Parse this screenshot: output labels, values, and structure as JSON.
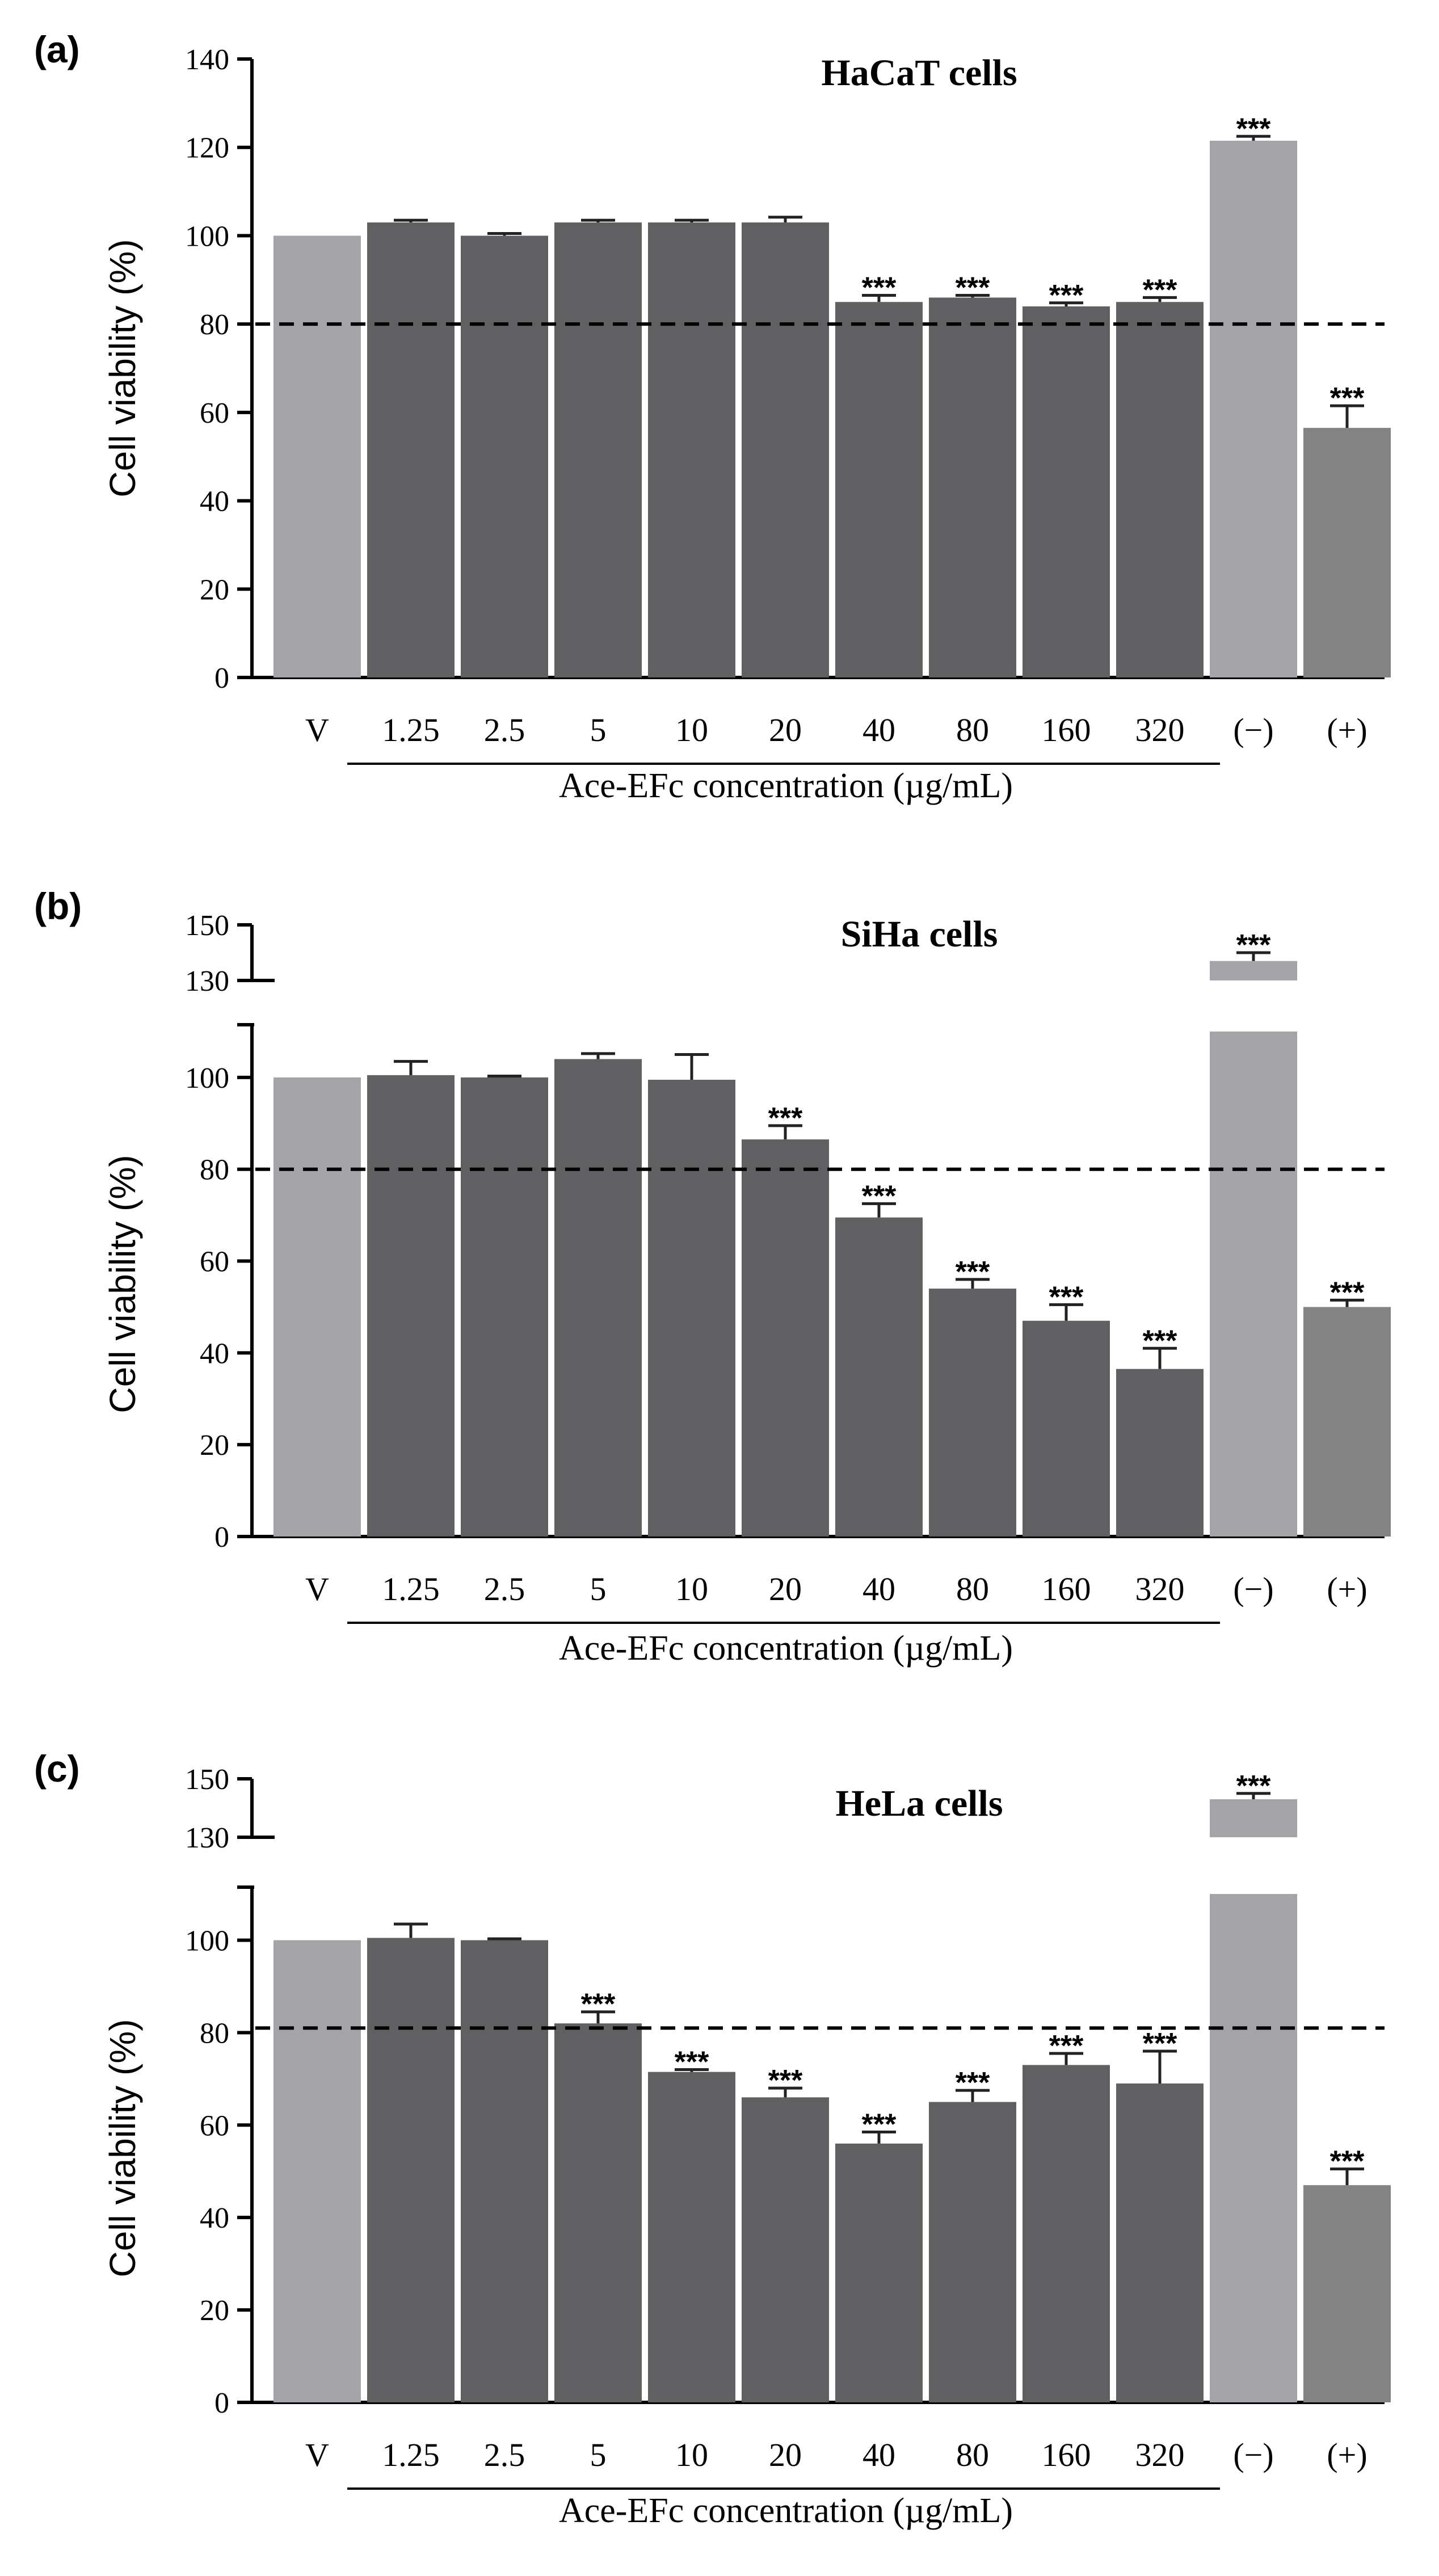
{
  "colors": {
    "vehicle": "#a4a3a7",
    "treatment": "#606062",
    "negative": "#a4a3a7",
    "positive": "#838384",
    "axis": "#000000"
  },
  "chart_data": [
    {
      "panel": "(a)",
      "type": "bar",
      "title": "HaCaT cells",
      "ylabel": "Cell viability (%)",
      "xlabel": "Ace-EFc concentration (µg/mL)",
      "categories": [
        "V",
        "1.25",
        "2.5",
        "5",
        "10",
        "20",
        "40",
        "80",
        "160",
        "320",
        "(−)",
        "(+)"
      ],
      "values": [
        100,
        103,
        100,
        103,
        103,
        103,
        85,
        86,
        84,
        85,
        121.5,
        56.5
      ],
      "errors": [
        0,
        0.5,
        0.5,
        0.5,
        0.5,
        1.2,
        1.5,
        0.5,
        0.8,
        1.0,
        1.0,
        5.0
      ],
      "significance": [
        "",
        "",
        "",
        "",
        "",
        "",
        "***",
        "***",
        "***",
        "***",
        "***",
        "***"
      ],
      "ylim": [
        0,
        140
      ],
      "yticks": [
        0,
        20,
        40,
        60,
        80,
        100,
        120,
        140
      ],
      "threshold": 80,
      "grid": false,
      "axis_break": false
    },
    {
      "panel": "(b)",
      "type": "bar",
      "title": "SiHa cells",
      "ylabel": "Cell viability (%)",
      "xlabel": "Ace-EFc concentration (µg/mL)",
      "categories": [
        "V",
        "1.25",
        "2.5",
        "5",
        "10",
        "20",
        "40",
        "80",
        "160",
        "320",
        "(−)",
        "(+)"
      ],
      "values": [
        100,
        100.5,
        100,
        104,
        99.5,
        86.5,
        69.5,
        54,
        47,
        36.5,
        137,
        50
      ],
      "errors": [
        0,
        3,
        0.3,
        1.2,
        5.5,
        3,
        3,
        2,
        3.5,
        4.5,
        3,
        1.5
      ],
      "significance": [
        "",
        "",
        "",
        "",
        "",
        "***",
        "***",
        "***",
        "***",
        "***",
        "***",
        "***"
      ],
      "ylim": [
        0,
        150
      ],
      "yticks": [
        0,
        20,
        40,
        60,
        80,
        100,
        130,
        150
      ],
      "threshold": 80,
      "grid": false,
      "axis_break": [
        110,
        130
      ]
    },
    {
      "panel": "(c)",
      "type": "bar",
      "title": "HeLa cells",
      "ylabel": "Cell viability (%)",
      "xlabel": "Ace-EFc concentration (µg/mL)",
      "categories": [
        "V",
        "1.25",
        "2.5",
        "5",
        "10",
        "20",
        "40",
        "80",
        "160",
        "320",
        "(−)",
        "(+)"
      ],
      "values": [
        100,
        100.5,
        100,
        82,
        71.5,
        66,
        56,
        65,
        73,
        69,
        143,
        47
      ],
      "errors": [
        0,
        3,
        0.3,
        2.5,
        0.5,
        2,
        2.5,
        2.5,
        2.5,
        7,
        2,
        3.5
      ],
      "significance": [
        "",
        "",
        "",
        "***",
        "***",
        "***",
        "***",
        "***",
        "***",
        "***",
        "***",
        "***"
      ],
      "ylim": [
        0,
        150
      ],
      "yticks": [
        0,
        20,
        40,
        60,
        80,
        100,
        130,
        150
      ],
      "threshold": 81,
      "grid": false,
      "axis_break": [
        110,
        130
      ]
    }
  ]
}
